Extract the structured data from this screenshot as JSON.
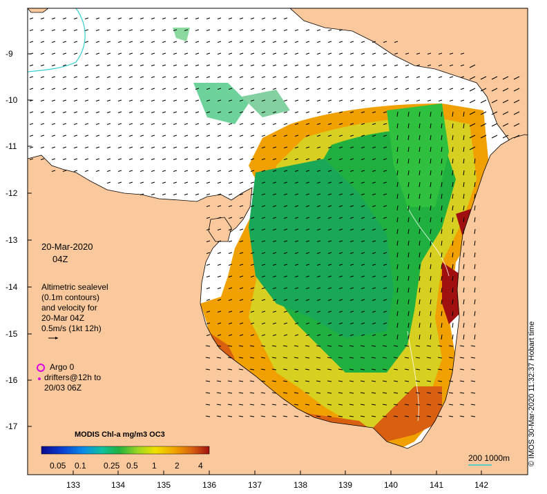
{
  "date": "20-Mar-2020",
  "time": "04Z",
  "legend": {
    "line1": "Altimetric sealevel",
    "line2": "(0.1m contours)",
    "line3": "and velocity for",
    "line4": "20-Mar 04Z",
    "line5": "0.5m/s (1kt 12h)"
  },
  "argo": {
    "line1": "Argo 0",
    "line2": "drifters@12h to",
    "line3": "20/03 06Z",
    "circle_color": "#e000e0"
  },
  "colorbar": {
    "title": "MODIS Chl-a mg/m3 OC3",
    "ticks": [
      "0.05",
      "0.1",
      "0.25",
      "0.5",
      "1",
      "2",
      "4"
    ],
    "colors": [
      "#0a0a8c",
      "#0a3cd0",
      "#0a8ce8",
      "#10c0a0",
      "#20b040",
      "#a0d820",
      "#f0e000",
      "#f0a000",
      "#d86010",
      "#a01010"
    ]
  },
  "scale": "200  1000m",
  "credit": "© IMOS 30-Mar-2020 11:32:37 Hobart time",
  "lat_labels": [
    "-9",
    "-10",
    "-11",
    "-12",
    "-13",
    "-14",
    "-15",
    "-16",
    "-17"
  ],
  "lon_labels": [
    "133",
    "134",
    "135",
    "136",
    "137",
    "138",
    "139",
    "140",
    "141",
    "142"
  ],
  "colors": {
    "land": "#f9c89c",
    "ocean": "#ffffff",
    "bathy_200m": "#30d0d0"
  }
}
